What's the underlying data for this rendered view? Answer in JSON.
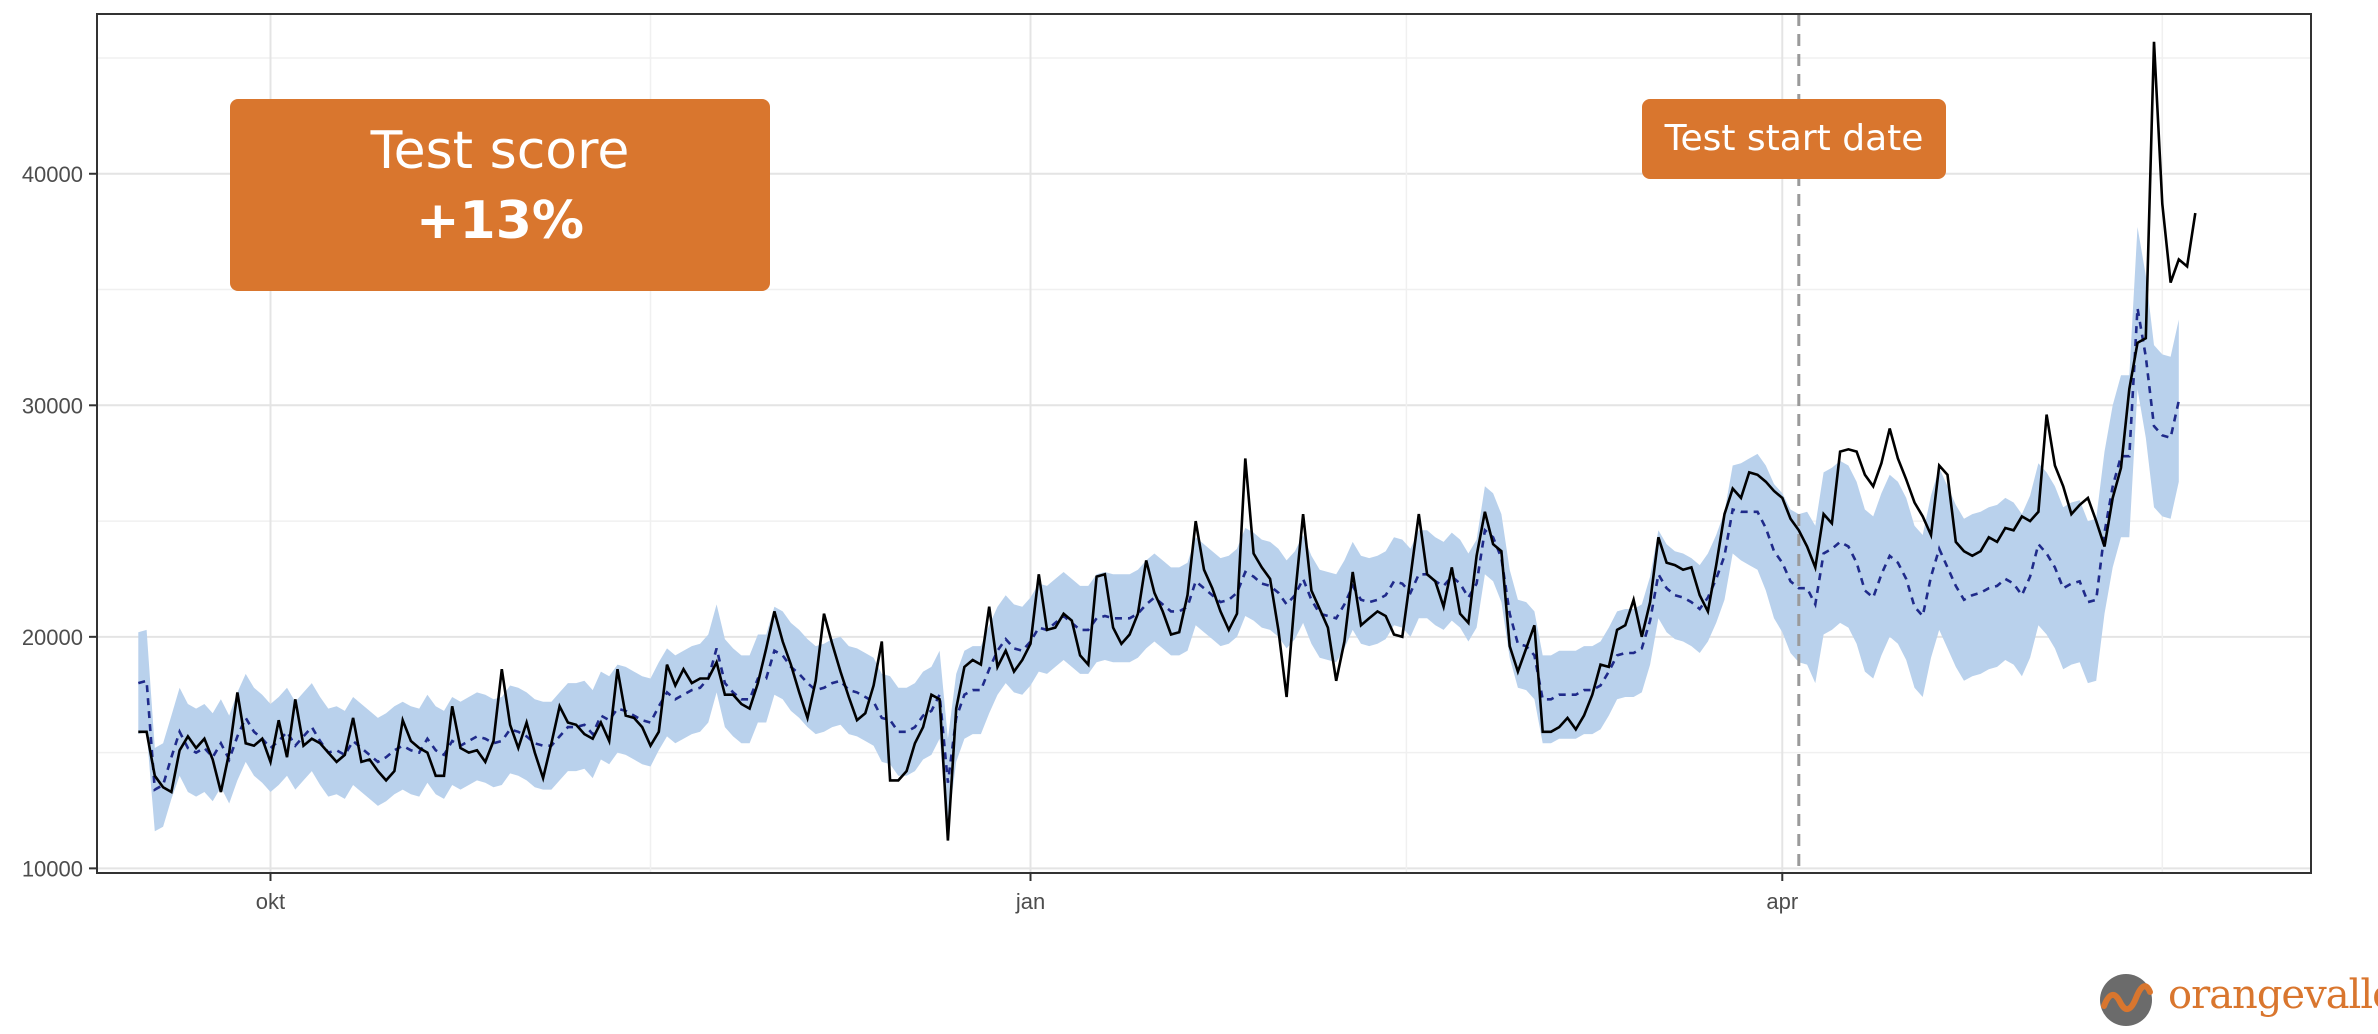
{
  "chart_data": {
    "type": "line",
    "title": "",
    "xlabel": "",
    "ylabel": "",
    "x_start": "2019-09-15",
    "x_end": "2020-05-25",
    "xlim": [
      "2019-09-10",
      "2020-06-04"
    ],
    "ylim": [
      9800,
      46900
    ],
    "y_ticks": [
      10000,
      20000,
      30000,
      40000
    ],
    "y_tick_labels": [
      "10000",
      "20000",
      "30000",
      "40000"
    ],
    "x_ticks": [
      "2019-10-01",
      "2020-01-01",
      "2020-04-01"
    ],
    "x_tick_labels": [
      "okt",
      "jan",
      "apr"
    ],
    "grid": true,
    "legend": "none",
    "test_start": "2020-04-03",
    "series": [
      {
        "style": "line",
        "color": "#000000",
        "values": [
          15900,
          15900,
          14000,
          13500,
          13300,
          15100,
          15700,
          15200,
          15600,
          14700,
          13300,
          15000,
          17600,
          15400,
          15300,
          15600,
          14600,
          16400,
          14800,
          17300,
          15300,
          15600,
          15400,
          15000,
          14600,
          14900,
          16500,
          14600,
          14700,
          14200,
          13800,
          14200,
          16400,
          15500,
          15200,
          15000,
          14000,
          14000,
          17000,
          15200,
          15000,
          15100,
          14600,
          15500,
          18600,
          16200,
          15200,
          16300,
          15000,
          13900,
          15400,
          17000,
          16300,
          16200,
          15800,
          15600,
          16300,
          15500,
          18600,
          16600,
          16500,
          16100,
          15300,
          15900,
          18800,
          17900,
          18600,
          18000,
          18200,
          18200,
          18900,
          17500,
          17500,
          17100,
          16900,
          18000,
          19500,
          21100,
          19800,
          18800,
          17600,
          16500,
          18100,
          21000,
          19700,
          18500,
          17400,
          16400,
          16700,
          17900,
          19800,
          13800,
          13800,
          14200,
          15400,
          16100,
          17500,
          17300,
          11200,
          16900,
          18700,
          19000,
          18800,
          21300,
          18700,
          19400,
          18500,
          19000,
          19700,
          22700,
          20300,
          20400,
          21000,
          20700,
          19200,
          18800,
          22600,
          22700,
          20400,
          19700,
          20100,
          21000,
          23300,
          21900,
          21100,
          20100,
          20200,
          21800,
          25000,
          22900,
          22100,
          21100,
          20300,
          21000,
          27700,
          23600,
          23000,
          22500,
          20300,
          17400,
          21700,
          25300,
          22000,
          21200,
          20400,
          18100,
          19800,
          22800,
          20500,
          20800,
          21100,
          20900,
          20100,
          20000,
          22600,
          25300,
          22700,
          22400,
          21300,
          23000,
          21000,
          20600,
          23500,
          25400,
          24000,
          23700,
          19600,
          18500,
          19500,
          20500,
          15900,
          15900,
          16100,
          16500,
          16000,
          16600,
          17500,
          18800,
          18700,
          20300,
          20500,
          21600,
          20000,
          21500,
          24300,
          23200,
          23100,
          22900,
          23000,
          21800,
          21100,
          23100,
          25300,
          26400,
          26000,
          27100,
          27000,
          26700,
          26300,
          26000,
          25100,
          24600,
          23900,
          23000,
          25300,
          24900,
          28000,
          28100,
          28000,
          27000,
          26500,
          27500,
          29000,
          27700,
          26800,
          25800,
          25200,
          24400,
          27400,
          27000,
          24100,
          23700,
          23500,
          23700,
          24300,
          24100,
          24700,
          24600,
          25200,
          25000,
          25400,
          29600,
          27400,
          26500,
          25300,
          25700,
          26000,
          25000,
          23900,
          26000,
          27300,
          30700,
          32700,
          32900,
          45700,
          38700,
          35300,
          36300,
          36000,
          38300
        ]
      },
      {
        "style": "dashed",
        "color": "#1f2a8a",
        "values": [
          18000,
          18100,
          13400,
          13600,
          14800,
          15900,
          15200,
          15000,
          15200,
          14800,
          15400,
          14700,
          15700,
          16500,
          15900,
          15600,
          15200,
          15500,
          15900,
          15300,
          15700,
          16100,
          15500,
          15000,
          15100,
          14900,
          15500,
          15200,
          14900,
          14600,
          14800,
          15100,
          15300,
          15100,
          15000,
          15600,
          15100,
          14900,
          15500,
          15300,
          15500,
          15700,
          15600,
          15400,
          15500,
          16000,
          15900,
          15700,
          15400,
          15300,
          15300,
          15700,
          16100,
          16100,
          16200,
          15800,
          16600,
          16400,
          16900,
          16800,
          16600,
          16400,
          16300,
          17000,
          17600,
          17300,
          17500,
          17700,
          17800,
          18200,
          19500,
          18000,
          17600,
          17300,
          17300,
          18200,
          18200,
          19400,
          19200,
          18700,
          18400,
          18000,
          17700,
          17800,
          18000,
          18100,
          17700,
          17600,
          17400,
          17200,
          16500,
          16400,
          15900,
          15900,
          16100,
          16600,
          16800,
          17500,
          13700,
          16500,
          17500,
          17700,
          17700,
          18600,
          19400,
          19900,
          19500,
          19400,
          19800,
          20400,
          20300,
          20600,
          20900,
          20600,
          20300,
          20300,
          20800,
          20900,
          20800,
          20800,
          20800,
          21000,
          21400,
          21700,
          21400,
          21100,
          21100,
          21300,
          22400,
          22100,
          21800,
          21500,
          21600,
          21900,
          22800,
          22600,
          22300,
          22200,
          21900,
          21400,
          21800,
          22500,
          21600,
          21000,
          20900,
          20800,
          21400,
          22200,
          21600,
          21500,
          21600,
          21800,
          22400,
          22300,
          21900,
          22700,
          22700,
          22400,
          22200,
          22600,
          22300,
          21700,
          22300,
          24600,
          24300,
          23400,
          21000,
          19700,
          19600,
          19200,
          17300,
          17300,
          17500,
          17500,
          17500,
          17700,
          17700,
          17900,
          18500,
          19200,
          19300,
          19300,
          19500,
          20700,
          22700,
          22100,
          21800,
          21700,
          21500,
          21200,
          21700,
          22500,
          23500,
          25500,
          25400,
          25400,
          25400,
          24700,
          23700,
          23200,
          22400,
          22100,
          22100,
          21400,
          23600,
          23800,
          24100,
          23900,
          23200,
          22000,
          21700,
          22700,
          23500,
          23200,
          22500,
          21300,
          20900,
          22600,
          23800,
          23000,
          22200,
          21600,
          21800,
          21900,
          22100,
          22200,
          22500,
          22300,
          21800,
          22600,
          24000,
          23600,
          23000,
          22100,
          22300,
          22400,
          21500,
          21600,
          24500,
          26500,
          27800,
          27800,
          34200,
          32100,
          29100,
          28700,
          28600,
          30200
        ]
      }
    ],
    "band": {
      "color": "#b9d1ec",
      "half_width": [
        2200,
        2200,
        1800,
        1800,
        1800,
        1900,
        1900,
        1900,
        1900,
        1900,
        1900,
        1900,
        1900,
        1900,
        1900,
        1900,
        1900,
        1900,
        1900,
        1900,
        1900,
        1900,
        1900,
        1900,
        1900,
        1900,
        1900,
        1900,
        1900,
        1900,
        1900,
        1900,
        1900,
        1900,
        1900,
        1900,
        1900,
        1900,
        1900,
        1900,
        1900,
        1900,
        1900,
        1900,
        1900,
        1900,
        1900,
        1900,
        1900,
        1900,
        1900,
        1900,
        1900,
        1900,
        1900,
        1900,
        1900,
        1900,
        1900,
        1900,
        1900,
        1900,
        1900,
        1900,
        1900,
        1900,
        1900,
        1900,
        1900,
        1900,
        1900,
        1900,
        1900,
        1900,
        1900,
        1900,
        1900,
        1900,
        1900,
        1900,
        1900,
        1900,
        1900,
        1900,
        1900,
        1900,
        1900,
        1900,
        1900,
        1900,
        1900,
        1900,
        1900,
        1900,
        1900,
        1900,
        1900,
        1900,
        1900,
        1900,
        1900,
        1900,
        1900,
        1900,
        1900,
        1900,
        1900,
        1900,
        1900,
        1900,
        1900,
        1900,
        1900,
        1900,
        1900,
        1900,
        1900,
        1900,
        1900,
        1900,
        1900,
        1900,
        1900,
        1900,
        1900,
        1900,
        1900,
        1900,
        1900,
        1900,
        1900,
        1900,
        1900,
        1900,
        1900,
        1900,
        1900,
        1900,
        1900,
        1900,
        1900,
        1900,
        1900,
        1900,
        1900,
        1900,
        1900,
        1900,
        1900,
        1900,
        1900,
        1900,
        1900,
        1900,
        1900,
        1900,
        1900,
        1900,
        1900,
        1900,
        1900,
        1900,
        1900,
        1900,
        1900,
        1900,
        1900,
        1900,
        1900,
        1900,
        1900,
        1900,
        1900,
        1900,
        1900,
        1900,
        1900,
        1900,
        1900,
        1900,
        1900,
        1900,
        1900,
        1900,
        1900,
        1900,
        1900,
        1900,
        1900,
        1900,
        1900,
        1900,
        1900,
        1900,
        2100,
        2300,
        2500,
        2700,
        2900,
        3000,
        3100,
        3200,
        3300,
        3400,
        3500,
        3500,
        3500,
        3500,
        3500,
        3500,
        3500,
        3500,
        3500,
        3500,
        3500,
        3500,
        3500,
        3500,
        3500,
        3500,
        3500,
        3500,
        3500,
        3500,
        3500,
        3500,
        3500,
        3500,
        3500,
        3500,
        3500,
        3500,
        3500,
        3500,
        3500,
        3500,
        3500,
        3500,
        3500,
        3500,
        3500,
        3500,
        3500,
        3500,
        3500,
        3500,
        3500,
        3500,
        3500,
        3500,
        3500,
        3500,
        3500,
        3500,
        3500,
        3500
      ]
    }
  },
  "annotations": {
    "score_title": "Test score",
    "score_value": "+13%",
    "start_label": "Test start date"
  },
  "logo": {
    "text": "orangevalley"
  }
}
